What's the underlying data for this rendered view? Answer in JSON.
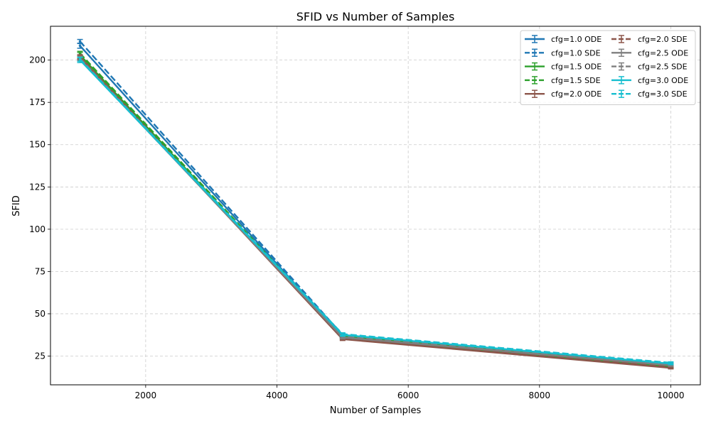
{
  "chart_data": {
    "type": "line",
    "title": "SFID vs Number of Samples",
    "xlabel": "Number of Samples",
    "ylabel": "SFID",
    "xlim": [
      550,
      10450
    ],
    "ylim": [
      8,
      220
    ],
    "xticks": [
      2000,
      4000,
      6000,
      8000,
      10000
    ],
    "yticks": [
      25,
      50,
      75,
      100,
      125,
      150,
      175,
      200
    ],
    "grid": true,
    "legend_position": "top-right",
    "legend_columns": 2,
    "x": [
      1000,
      5000,
      10000
    ],
    "series": [
      {
        "name": "cfg=1.0 ODE",
        "color": "#1f77b4",
        "dash": "solid",
        "values": [
          208.5,
          36.5,
          19.0
        ],
        "errors": [
          1.5,
          0.8,
          0.6
        ]
      },
      {
        "name": "cfg=1.0 SDE",
        "color": "#1f77b4",
        "dash": "dashed",
        "values": [
          211.0,
          37.5,
          20.0
        ],
        "errors": [
          1.2,
          0.8,
          0.6
        ]
      },
      {
        "name": "cfg=1.5 ODE",
        "color": "#2ca02c",
        "dash": "solid",
        "values": [
          203.0,
          36.0,
          18.5
        ],
        "errors": [
          1.5,
          0.8,
          0.6
        ]
      },
      {
        "name": "cfg=1.5 SDE",
        "color": "#2ca02c",
        "dash": "dashed",
        "values": [
          204.0,
          36.8,
          19.5
        ],
        "errors": [
          1.2,
          0.8,
          0.6
        ]
      },
      {
        "name": "cfg=2.0 ODE",
        "color": "#8c564b",
        "dash": "solid",
        "values": [
          201.5,
          35.0,
          18.0
        ],
        "errors": [
          1.2,
          0.8,
          0.6
        ]
      },
      {
        "name": "cfg=2.0 SDE",
        "color": "#8c564b",
        "dash": "dashed",
        "values": [
          202.0,
          35.5,
          18.5
        ],
        "errors": [
          1.2,
          0.8,
          0.6
        ]
      },
      {
        "name": "cfg=2.5 ODE",
        "color": "#7f7f7f",
        "dash": "solid",
        "values": [
          200.5,
          36.0,
          19.5
        ],
        "errors": [
          1.2,
          0.8,
          0.6
        ]
      },
      {
        "name": "cfg=2.5 SDE",
        "color": "#7f7f7f",
        "dash": "dashed",
        "values": [
          201.0,
          36.5,
          20.0
        ],
        "errors": [
          1.2,
          0.8,
          0.6
        ]
      },
      {
        "name": "cfg=3.0 ODE",
        "color": "#17becf",
        "dash": "solid",
        "values": [
          200.0,
          37.5,
          20.5
        ],
        "errors": [
          1.5,
          0.8,
          0.6
        ]
      },
      {
        "name": "cfg=3.0 SDE",
        "color": "#17becf",
        "dash": "dashed",
        "values": [
          200.5,
          38.0,
          21.0
        ],
        "errors": [
          1.2,
          0.8,
          0.6
        ]
      }
    ]
  }
}
